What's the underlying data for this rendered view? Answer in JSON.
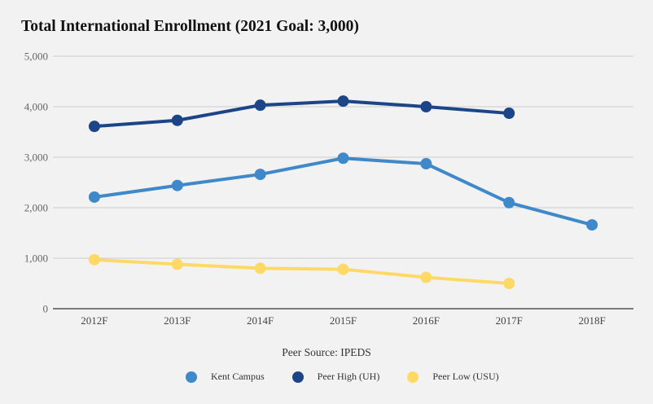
{
  "chart_data": {
    "type": "line",
    "title": "Total International Enrollment (2021 Goal: 3,000)",
    "xlabel": "Peer Source: IPEDS",
    "ylabel": "",
    "categories": [
      "2012F",
      "2013F",
      "2014F",
      "2015F",
      "2016F",
      "2017F",
      "2018F"
    ],
    "yticks": [
      "0",
      "1,000",
      "2,000",
      "3,000",
      "4,000",
      "5,000"
    ],
    "ylim": [
      0,
      5000
    ],
    "grid": true,
    "legend_position": "bottom",
    "series": [
      {
        "name": "Kent Campus",
        "color": "#3f88c9",
        "values": [
          2210,
          2440,
          2660,
          2980,
          2870,
          2100,
          1660
        ]
      },
      {
        "name": "Peer High (UH)",
        "color": "#1c4587",
        "values": [
          3610,
          3730,
          4030,
          4110,
          4000,
          3870,
          null
        ]
      },
      {
        "name": "Peer Low (USU)",
        "color": "#ffd966",
        "values": [
          970,
          880,
          800,
          780,
          620,
          500,
          null
        ]
      }
    ]
  }
}
